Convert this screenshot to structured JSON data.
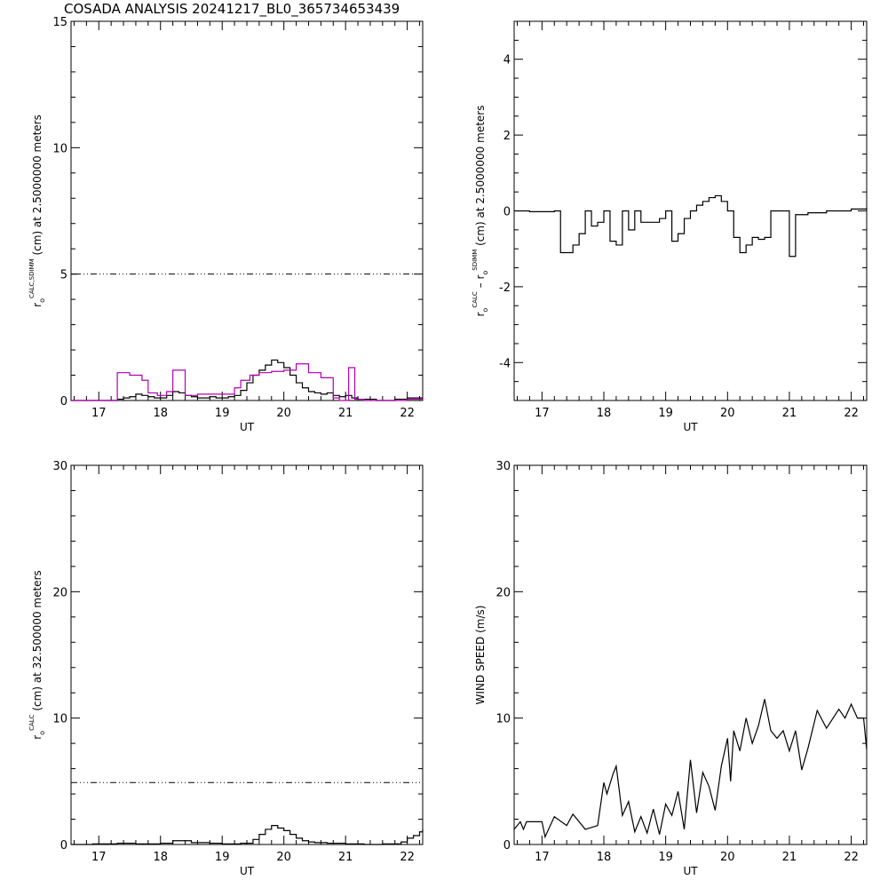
{
  "page": {
    "title": "COSADA ANALYSIS 20241217_BL0_365734653439"
  },
  "colors": {
    "axis": "#000000",
    "trace_black": "#000000",
    "trace_magenta": "#b000b0"
  },
  "chart_data": [
    {
      "id": "panel-tl",
      "type": "line",
      "step": true,
      "xlabel": "UT",
      "ylabel": {
        "main": "r",
        "sub": "o",
        "sup": "CALC,SDIMM",
        "rest": "(cm)  at  2.5000000 meters"
      },
      "xlim": [
        16.55,
        22.25
      ],
      "ylim": [
        0,
        15
      ],
      "xticks": [
        17,
        18,
        19,
        20,
        21,
        22
      ],
      "yticks": [
        0,
        5,
        10,
        15
      ],
      "hline": 5,
      "series": [
        {
          "color": "#000000",
          "x": [
            16.55,
            16.7,
            16.85,
            17.0,
            17.15,
            17.3,
            17.4,
            17.5,
            17.6,
            17.7,
            17.8,
            17.9,
            18.0,
            18.1,
            18.2,
            18.3,
            18.4,
            18.5,
            18.6,
            18.7,
            18.8,
            18.9,
            19.0,
            19.1,
            19.2,
            19.3,
            19.4,
            19.5,
            19.6,
            19.7,
            19.8,
            19.9,
            20.0,
            20.1,
            20.2,
            20.3,
            20.4,
            20.5,
            20.6,
            20.7,
            20.8,
            20.9,
            21.0,
            21.1,
            21.2,
            21.5,
            21.8,
            22.0,
            22.25
          ],
          "y": [
            0.0,
            0.0,
            0.0,
            0.0,
            0.0,
            0.05,
            0.1,
            0.15,
            0.25,
            0.2,
            0.15,
            0.1,
            0.1,
            0.2,
            0.35,
            0.3,
            0.2,
            0.15,
            0.1,
            0.1,
            0.15,
            0.1,
            0.1,
            0.15,
            0.2,
            0.4,
            0.7,
            1.0,
            1.2,
            1.4,
            1.6,
            1.5,
            1.3,
            1.0,
            0.7,
            0.5,
            0.35,
            0.3,
            0.25,
            0.3,
            0.2,
            0.15,
            0.2,
            0.1,
            0.05,
            0.0,
            0.05,
            0.1,
            0.1
          ]
        },
        {
          "color": "#b000b0",
          "x": [
            16.55,
            17.3,
            17.5,
            17.7,
            17.8,
            17.95,
            18.1,
            18.2,
            18.4,
            18.6,
            18.8,
            19.0,
            19.2,
            19.3,
            19.45,
            19.6,
            19.8,
            20.0,
            20.2,
            20.4,
            20.6,
            20.8,
            20.9,
            21.05,
            21.15,
            21.3,
            21.6,
            22.0,
            22.25
          ],
          "y": [
            0.0,
            1.1,
            1.0,
            0.8,
            0.3,
            0.2,
            0.35,
            1.2,
            0.2,
            0.25,
            0.25,
            0.25,
            0.5,
            0.8,
            1.0,
            1.1,
            1.15,
            1.2,
            1.45,
            1.1,
            0.9,
            0.1,
            0.0,
            1.3,
            0.05,
            0.0,
            0.0,
            0.05,
            0.05
          ]
        }
      ]
    },
    {
      "id": "panel-tr",
      "type": "line",
      "step": true,
      "xlabel": "UT",
      "ylabel": {
        "main": "r",
        "sub": "o",
        "sup": "CALC",
        "rest2": "SDIMM",
        "text": "(cm) at 2.5000000 meters"
      },
      "xlim": [
        16.55,
        22.25
      ],
      "ylim": [
        -5,
        5
      ],
      "xticks": [
        17,
        18,
        19,
        20,
        21,
        22
      ],
      "yticks": [
        -4,
        -2,
        0,
        2,
        4
      ],
      "series": [
        {
          "color": "#000000",
          "x": [
            16.55,
            16.8,
            17.2,
            17.3,
            17.5,
            17.6,
            17.7,
            17.8,
            17.9,
            18.0,
            18.1,
            18.2,
            18.3,
            18.4,
            18.5,
            18.6,
            18.75,
            18.9,
            19.0,
            19.1,
            19.2,
            19.3,
            19.4,
            19.5,
            19.6,
            19.7,
            19.8,
            19.9,
            20.0,
            20.1,
            20.2,
            20.3,
            20.4,
            20.5,
            20.6,
            20.7,
            20.8,
            21.0,
            21.1,
            21.3,
            21.6,
            22.0,
            22.25
          ],
          "y": [
            0.0,
            -0.02,
            0.0,
            -1.1,
            -0.9,
            -0.6,
            0.0,
            -0.4,
            -0.3,
            0.0,
            -0.8,
            -0.9,
            0.0,
            -0.5,
            0.0,
            -0.3,
            -0.3,
            -0.2,
            0.0,
            -0.8,
            -0.6,
            -0.2,
            0.0,
            0.15,
            0.25,
            0.35,
            0.4,
            0.25,
            0.0,
            -0.7,
            -1.1,
            -0.9,
            -0.7,
            -0.75,
            -0.7,
            0.0,
            0.0,
            -1.2,
            -0.1,
            -0.05,
            0.0,
            0.05,
            0.08
          ]
        }
      ]
    },
    {
      "id": "panel-bl",
      "type": "line",
      "step": true,
      "xlabel": "UT",
      "ylabel": {
        "main": "r",
        "sub": "o",
        "sup": "CALC",
        "rest": "(cm) at 32.500000 meters"
      },
      "xlim": [
        16.55,
        22.25
      ],
      "ylim": [
        0,
        30
      ],
      "xticks": [
        17,
        18,
        19,
        20,
        21,
        22
      ],
      "yticks": [
        0,
        10,
        20,
        30
      ],
      "hline": 4.9,
      "series": [
        {
          "color": "#000000",
          "x": [
            16.55,
            16.9,
            17.3,
            17.6,
            18.0,
            18.2,
            18.5,
            18.8,
            19.0,
            19.3,
            19.5,
            19.6,
            19.7,
            19.8,
            19.9,
            20.0,
            20.1,
            20.2,
            20.3,
            20.4,
            20.5,
            20.7,
            21.0,
            21.3,
            21.6,
            21.9,
            22.0,
            22.1,
            22.2,
            22.25
          ],
          "y": [
            0.0,
            0.05,
            0.1,
            0.05,
            0.1,
            0.3,
            0.15,
            0.1,
            0.05,
            0.1,
            0.4,
            0.8,
            1.2,
            1.5,
            1.3,
            1.1,
            0.8,
            0.5,
            0.3,
            0.2,
            0.15,
            0.1,
            0.05,
            0.0,
            0.05,
            0.2,
            0.5,
            0.7,
            1.0,
            1.2
          ]
        }
      ]
    },
    {
      "id": "panel-br",
      "type": "line",
      "step": false,
      "xlabel": "UT",
      "ylabel": {
        "text": "WIND SPEED (m/s)"
      },
      "xlim": [
        16.55,
        22.25
      ],
      "ylim": [
        0,
        30
      ],
      "xticks": [
        17,
        18,
        19,
        20,
        21,
        22
      ],
      "yticks": [
        0,
        10,
        20,
        30
      ],
      "series": [
        {
          "color": "#000000",
          "x": [
            16.55,
            16.65,
            16.7,
            16.75,
            17.0,
            17.05,
            17.2,
            17.4,
            17.5,
            17.7,
            17.9,
            18.0,
            18.05,
            18.15,
            18.2,
            18.3,
            18.4,
            18.5,
            18.6,
            18.7,
            18.8,
            18.9,
            19.0,
            19.1,
            19.2,
            19.3,
            19.4,
            19.5,
            19.6,
            19.7,
            19.8,
            19.9,
            20.0,
            20.05,
            20.1,
            20.2,
            20.3,
            20.4,
            20.5,
            20.6,
            20.7,
            20.8,
            20.9,
            21.0,
            21.1,
            21.2,
            21.3,
            21.45,
            21.6,
            21.8,
            21.9,
            22.0,
            22.1,
            22.2,
            22.25
          ],
          "y": [
            1.2,
            1.8,
            1.2,
            1.8,
            1.8,
            0.6,
            2.2,
            1.5,
            2.4,
            1.2,
            1.5,
            4.9,
            4.0,
            5.6,
            6.2,
            2.3,
            3.4,
            1.0,
            2.2,
            0.9,
            2.8,
            0.8,
            3.2,
            2.3,
            4.2,
            1.2,
            6.7,
            2.5,
            5.7,
            4.6,
            2.7,
            6.2,
            8.4,
            5.0,
            9.0,
            7.4,
            10.0,
            8.0,
            9.4,
            11.5,
            9.0,
            8.4,
            9.0,
            7.4,
            9.0,
            5.9,
            7.6,
            10.6,
            9.2,
            10.7,
            10.0,
            11.1,
            10.0,
            10.0,
            7.5
          ]
        }
      ]
    }
  ]
}
